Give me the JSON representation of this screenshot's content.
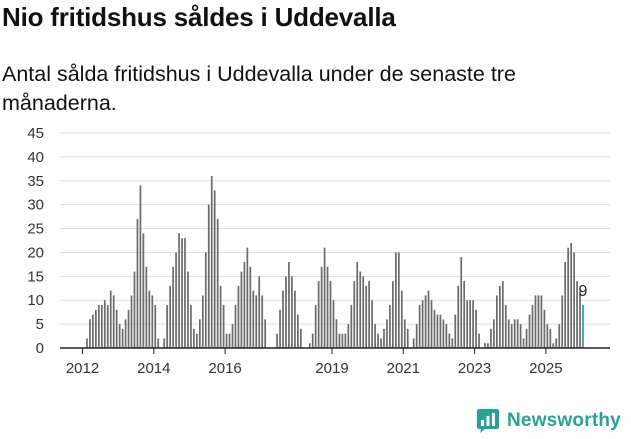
{
  "header": {
    "title": "Nio fritidshus såldes i Uddevalla",
    "subtitle": "Antal sålda fritidshus i Uddevalla under de senaste tre månaderna."
  },
  "brand": {
    "name": "Newsworthy",
    "color": "#2aa198"
  },
  "colors": {
    "bar": "#6b6b6b",
    "highlight": "#2aa198",
    "grid": "#dddddd"
  },
  "chart_data": {
    "type": "bar",
    "title": "Nio fritidshus såldes i Uddevalla",
    "xlabel": "",
    "ylabel": "",
    "ylim": [
      0,
      45
    ],
    "yticks": [
      0,
      5,
      10,
      15,
      20,
      25,
      30,
      35,
      40,
      45
    ],
    "grid": true,
    "xticks": [
      "2012",
      "2014",
      "2016",
      "2019",
      "2021",
      "2023",
      "2025"
    ],
    "xtick_month_index": [
      0,
      24,
      48,
      84,
      108,
      132,
      156
    ],
    "first_month": "2012-01",
    "highlight_label": "9",
    "values": [
      0,
      2,
      6,
      7,
      8,
      9,
      9,
      10,
      9,
      12,
      11,
      8,
      5,
      4,
      6,
      8,
      11,
      16,
      27,
      34,
      24,
      17,
      12,
      11,
      9,
      2,
      0,
      2,
      9,
      13,
      17,
      20,
      24,
      23,
      23,
      16,
      9,
      4,
      3,
      6,
      11,
      20,
      30,
      36,
      33,
      27,
      13,
      9,
      3,
      3,
      5,
      9,
      13,
      16,
      18,
      21,
      17,
      12,
      11,
      15,
      11,
      6,
      0,
      0,
      0,
      3,
      8,
      12,
      15,
      18,
      15,
      12,
      7,
      4,
      0,
      0,
      1,
      3,
      9,
      14,
      17,
      21,
      17,
      14,
      10,
      6,
      3,
      3,
      3,
      5,
      9,
      14,
      18,
      16,
      15,
      13,
      14,
      10,
      5,
      3,
      2,
      4,
      6,
      9,
      14,
      20,
      20,
      12,
      6,
      4,
      0,
      2,
      5,
      9,
      10,
      11,
      12,
      10,
      8,
      7,
      7,
      6,
      5,
      3,
      2,
      7,
      13,
      19,
      14,
      10,
      10,
      10,
      8,
      3,
      0,
      1,
      1,
      4,
      6,
      11,
      13,
      14,
      9,
      6,
      5,
      6,
      6,
      5,
      2,
      4,
      7,
      9,
      11,
      11,
      11,
      8,
      5,
      4,
      1,
      2,
      5,
      11,
      18,
      21,
      22,
      20,
      14,
      12,
      9
    ]
  }
}
